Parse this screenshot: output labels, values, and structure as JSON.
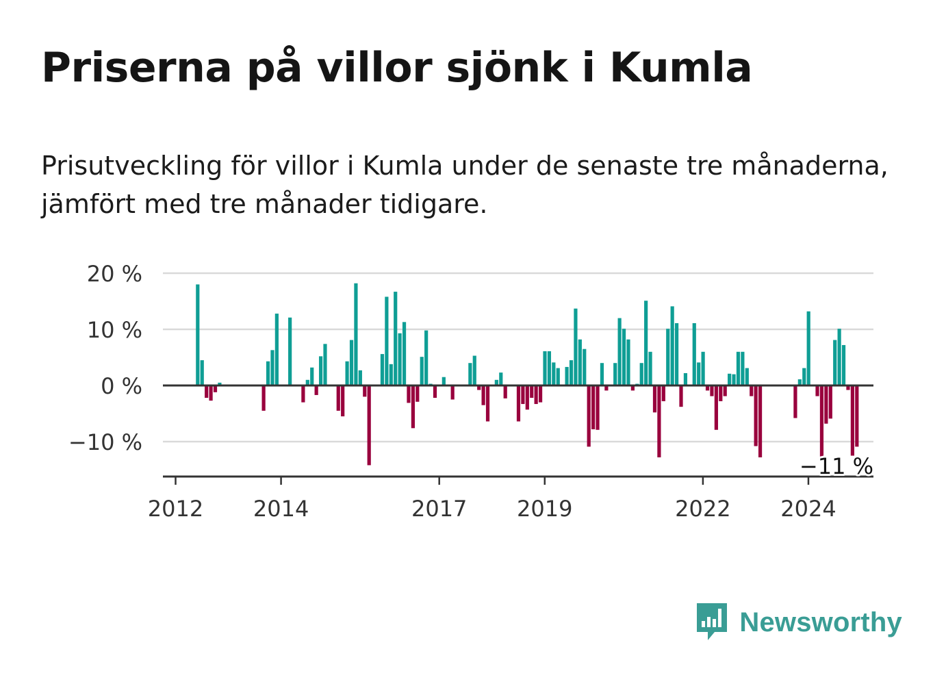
{
  "header": {
    "title": "Priserna på villor sjönk i Kumla",
    "subtitle": "Prisutveckling för villor i Kumla under de senaste tre månaderna, jämfört med tre månader tidigare."
  },
  "brand": {
    "name": "Newsworthy",
    "icon": "newsworthy-logo-icon"
  },
  "colors": {
    "positive": "#0f9e95",
    "negative": "#99003d",
    "grid": "#d9d9d9",
    "axis": "#333333"
  },
  "chart_data": {
    "type": "bar",
    "title": "",
    "xlabel": "",
    "ylabel": "",
    "ylim": [
      -16,
      20
    ],
    "yticks": [
      20,
      10,
      0,
      -10
    ],
    "ytick_labels": [
      "20 %",
      "10 %",
      "0 %",
      "−10 %"
    ],
    "xticks": [
      "2012",
      "2014",
      "2017",
      "2019",
      "2022",
      "2024"
    ],
    "x_start_date": "2012-01",
    "grid": true,
    "annotation": {
      "label": "−11 %",
      "target": "last"
    },
    "values": [
      null,
      null,
      null,
      null,
      null,
      18,
      4.5,
      -2.2,
      -2.7,
      -1.2,
      0.5,
      null,
      null,
      null,
      null,
      null,
      null,
      null,
      null,
      null,
      -4.5,
      4.3,
      6.3,
      12.8,
      null,
      null,
      12.1,
      null,
      null,
      -3,
      1,
      3.2,
      -1.7,
      5.2,
      7.4,
      null,
      null,
      -4.5,
      -5.5,
      4.3,
      8.1,
      18.2,
      2.7,
      -2,
      -14.2,
      null,
      null,
      5.6,
      15.8,
      3.8,
      16.7,
      9.3,
      11.3,
      -3.1,
      -7.6,
      -2.9,
      5.1,
      9.8,
      0.3,
      -2.2,
      null,
      1.5,
      null,
      -2.5,
      null,
      null,
      null,
      4,
      5.3,
      -0.8,
      -3.5,
      -6.4,
      null,
      1,
      2.3,
      -2.3,
      null,
      null,
      -6.4,
      -3.3,
      -4.3,
      -2.2,
      -3.3,
      -3,
      6.1,
      6.1,
      4.1,
      3.1,
      null,
      3.3,
      4.5,
      13.7,
      8.2,
      6.5,
      -10.9,
      -7.8,
      -7.9,
      4,
      -0.9,
      null,
      4,
      12,
      10.1,
      8.2,
      -0.9,
      0.3,
      4,
      15.1,
      6,
      -4.8,
      -12.8,
      -2.8,
      10.1,
      14.1,
      11.1,
      -3.8,
      2.2,
      null,
      11.1,
      4.1,
      6,
      -0.9,
      -1.9,
      -7.9,
      -2.8,
      -1.9,
      2.1,
      2,
      6,
      6,
      3.1,
      -1.9,
      -10.8,
      -12.8,
      null,
      null,
      null,
      null,
      null,
      null,
      null,
      -5.8,
      1.1,
      3.1,
      13.2,
      null,
      -1.9,
      -13.6,
      -6.8,
      -5.9,
      8.1,
      10.1,
      7.2,
      -0.8,
      -12.5,
      -10.9
    ]
  }
}
